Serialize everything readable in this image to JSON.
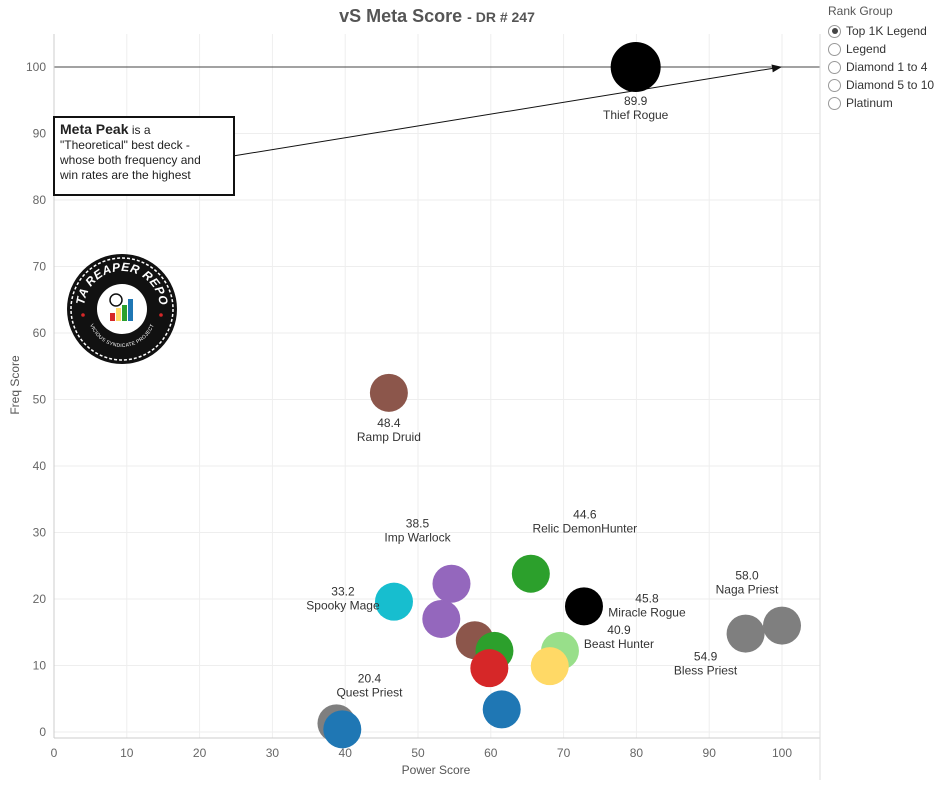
{
  "chart_data": {
    "type": "scatter",
    "title": "vS Meta Score",
    "subtitle": "DR # 247",
    "xlabel": "Power Score",
    "ylabel": "Freq Score",
    "xlim": [
      0,
      105
    ],
    "ylim": [
      0,
      105
    ],
    "xticks": [
      0,
      10,
      20,
      30,
      40,
      50,
      60,
      70,
      80,
      90,
      100
    ],
    "yticks": [
      0,
      10,
      20,
      30,
      40,
      50,
      60,
      70,
      80,
      90,
      100
    ],
    "grid": true,
    "reference_line_y": 100,
    "points": [
      {
        "x": 79.9,
        "y": 100,
        "color": "#000000",
        "score": "89.9",
        "name": "Thief Rogue"
      },
      {
        "x": 46.0,
        "y": 51.0,
        "color": "#8c564b",
        "score": "48.4",
        "name": "Ramp Druid"
      },
      {
        "x": 65.5,
        "y": 23.8,
        "color": "#2ca02c",
        "score": "44.6",
        "name": "Relic DemonHunter"
      },
      {
        "x": 54.6,
        "y": 22.3,
        "color": "#9467bd",
        "score": "38.5",
        "name": "Imp Warlock"
      },
      {
        "x": 46.7,
        "y": 19.6,
        "color": "#17becf",
        "score": "33.2",
        "name": "Spooky Mage"
      },
      {
        "x": 72.8,
        "y": 18.9,
        "color": "#000000",
        "score": "45.8",
        "name": "Miracle Rogue"
      },
      {
        "x": 100.0,
        "y": 16.0,
        "color": "#7f7f7f",
        "score": "58.0",
        "name": "Naga Priest"
      },
      {
        "x": 95.0,
        "y": 14.8,
        "color": "#7f7f7f",
        "score": "54.9",
        "name": "Bless Priest"
      },
      {
        "x": 69.5,
        "y": 12.2,
        "color": "#98df8a",
        "score": "40.9",
        "name": "Beast Hunter"
      },
      {
        "x": 53.2,
        "y": 17.0,
        "color": "#9467bd",
        "score": "",
        "name": ""
      },
      {
        "x": 57.8,
        "y": 13.8,
        "color": "#8c564b",
        "score": "",
        "name": ""
      },
      {
        "x": 60.5,
        "y": 12.2,
        "color": "#2ca02c",
        "score": "",
        "name": ""
      },
      {
        "x": 59.8,
        "y": 9.6,
        "color": "#d62728",
        "score": "",
        "name": ""
      },
      {
        "x": 68.1,
        "y": 9.9,
        "color": "#ffd966",
        "score": "",
        "name": ""
      },
      {
        "x": 61.5,
        "y": 3.4,
        "color": "#1f77b4",
        "score": "",
        "name": ""
      },
      {
        "x": 38.8,
        "y": 1.3,
        "color": "#7f7f7f",
        "score": "20.4",
        "name": "Quest Priest"
      },
      {
        "x": 39.6,
        "y": 0.4,
        "color": "#1f77b4",
        "score": "",
        "name": ""
      }
    ]
  },
  "legend": {
    "title": "Rank Group",
    "items": [
      {
        "label": "Top 1K Legend",
        "selected": true
      },
      {
        "label": "Legend",
        "selected": false
      },
      {
        "label": "Diamond 1 to 4",
        "selected": false
      },
      {
        "label": "Diamond 5 to 10",
        "selected": false
      },
      {
        "label": "Platinum",
        "selected": false
      }
    ]
  },
  "annotation": {
    "title": "Meta Peak",
    "text_1": " is a",
    "text_2": "\"Theoretical\" best deck -",
    "text_3": "whose both frequency and",
    "text_4": "win rates are the highest"
  },
  "logo": {
    "top_text": "DATA REAPER REPORT",
    "bottom_text": "VICIOUS SYNDICATE PROJECT"
  }
}
